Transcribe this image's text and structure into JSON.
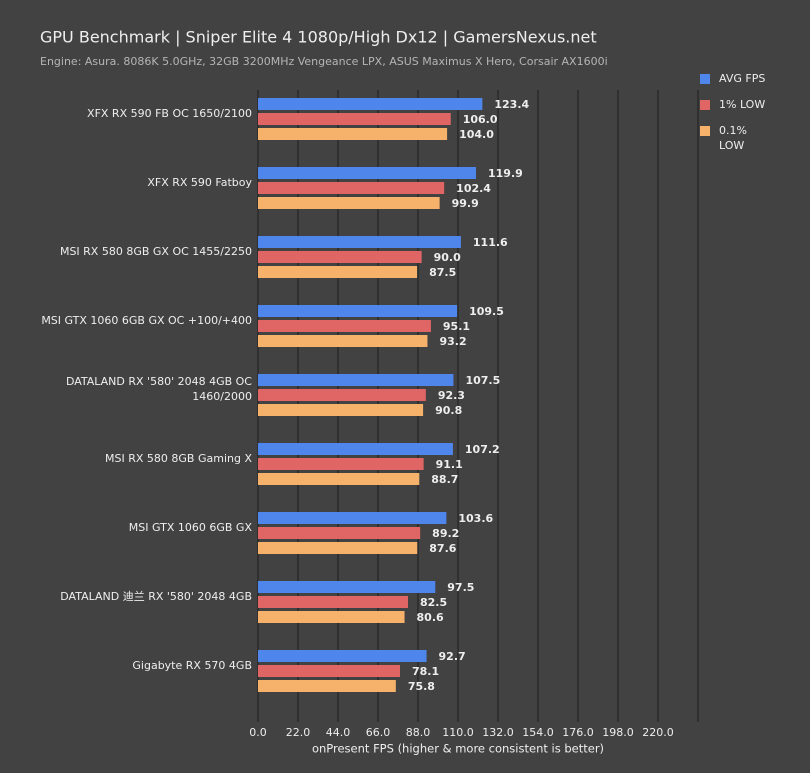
{
  "chart_data": {
    "type": "bar",
    "orientation": "horizontal",
    "title": "GPU Benchmark | Sniper Elite 4 1080p/High Dx12 | GamersNexus.net",
    "subtitle": "Engine: Asura. 8086K 5.0GHz, 32GB 3200MHz Vengeance LPX, ASUS Maximus X Hero, Corsair AX1600i",
    "x_label": "onPresent FPS (higher & more consistent is better)",
    "categories": [
      "XFX RX 590 FB OC 1650/2100",
      "XFX RX 590 Fatboy",
      "MSI RX 580 8GB GX OC 1455/2250",
      "MSI GTX 1060 6GB GX OC +100/+400",
      "DATALAND RX '580' 2048 4GB OC 1460/2000",
      "MSI RX 580 8GB Gaming X",
      "MSI GTX 1060 6GB GX",
      "DATALAND 迪兰 RX '580' 2048 4GB",
      "Gigabyte RX 570 4GB"
    ],
    "series": [
      {
        "name": "AVG FPS",
        "color": "#4f86ec",
        "values": [
          123.4,
          119.9,
          111.6,
          109.5,
          107.5,
          107.2,
          103.6,
          97.5,
          92.7
        ],
        "value_labels": [
          "123.4",
          "119.9",
          "111.6",
          "109.5",
          "107.5",
          "107.2",
          "103.6",
          "97.5",
          "92.7"
        ]
      },
      {
        "name": "1% LOW",
        "color": "#e06666",
        "values": [
          106.0,
          102.4,
          90.0,
          95.1,
          92.3,
          91.1,
          89.2,
          82.5,
          78.1
        ],
        "value_labels": [
          "106.0",
          "102.4",
          "90.0",
          "95.1",
          "92.3",
          "91.1",
          "89.2",
          "82.5",
          "78.1"
        ]
      },
      {
        "name": "0.1% LOW",
        "color": "#f6b26b",
        "values": [
          104.0,
          99.9,
          87.5,
          93.2,
          90.8,
          88.7,
          87.6,
          80.6,
          75.8
        ],
        "value_labels": [
          "104.0",
          "99.9",
          "87.5",
          "93.2",
          "90.8",
          "88.7",
          "87.6",
          "80.6",
          "75.8"
        ]
      }
    ],
    "xlim": [
      0,
      242
    ],
    "xticks": [
      {
        "value": 0,
        "label": "0.0"
      },
      {
        "value": 22,
        "label": "22.0"
      },
      {
        "value": 44,
        "label": "44.0"
      },
      {
        "value": 66,
        "label": "66.0"
      },
      {
        "value": 88,
        "label": "88.0"
      },
      {
        "value": 110,
        "label": "110.0"
      },
      {
        "value": 132,
        "label": "132.0"
      },
      {
        "value": 154,
        "label": "154.0"
      },
      {
        "value": 176,
        "label": "176.0"
      },
      {
        "value": 198,
        "label": "198.0"
      },
      {
        "value": 220,
        "label": "220.0"
      }
    ],
    "grid": true,
    "legend": "top-right"
  }
}
